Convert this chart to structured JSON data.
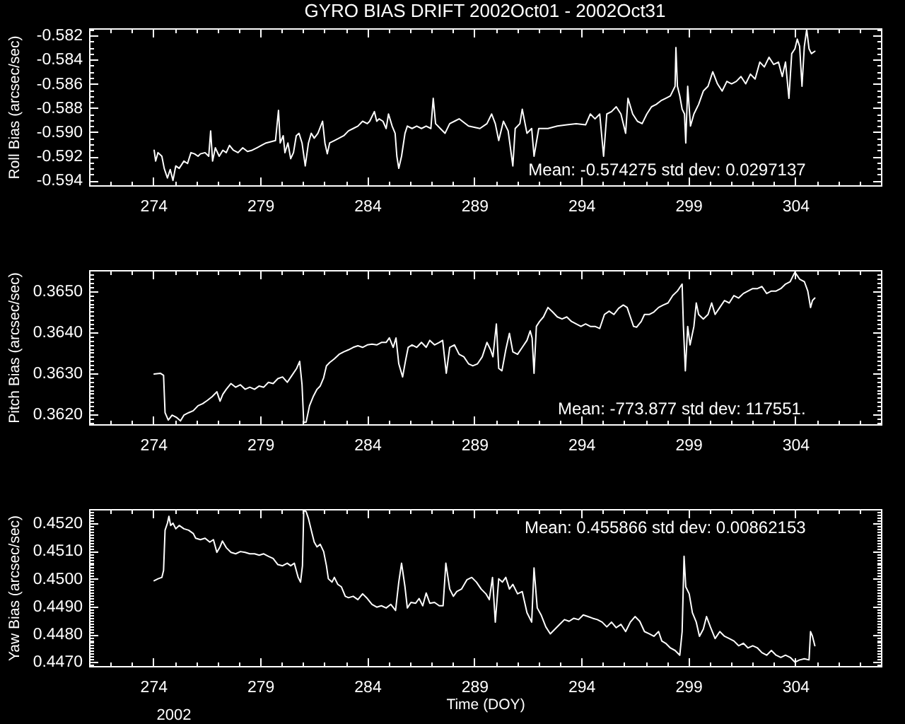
{
  "chart_data": [
    {
      "type": "line",
      "title": "GYRO BIAS DRIFT 2002Oct01 - 2002Oct31",
      "ylabel": "Roll Bias (arcsec/sec)",
      "x": [
        274.04,
        274.11,
        274.22,
        274.4,
        274.51,
        274.66,
        274.79,
        274.92,
        275.05,
        275.21,
        275.43,
        275.6,
        275.76,
        275.93,
        276.09,
        276.2,
        276.42,
        276.59,
        276.68,
        276.77,
        276.9,
        277.08,
        277.25,
        277.41,
        277.56,
        277.74,
        277.96,
        278.18,
        278.4,
        278.62,
        278.84,
        279.05,
        279.27,
        279.49,
        279.71,
        279.85,
        279.93,
        280.07,
        280.15,
        280.29,
        280.42,
        280.55,
        280.68,
        280.81,
        280.95,
        281.1,
        281.25,
        281.38,
        281.52,
        281.69,
        281.91,
        282.02,
        282.13,
        282.24,
        282.46,
        282.68,
        282.9,
        283.12,
        283.34,
        283.56,
        283.78,
        284,
        284.11,
        284.33,
        284.44,
        284.55,
        284.73,
        284.88,
        284.99,
        285.16,
        285.3,
        285.38,
        285.47,
        285.6,
        285.76,
        285.87,
        286.09,
        286.31,
        286.53,
        286.75,
        286.97,
        287.08,
        287.19,
        287.41,
        287.63,
        287.85,
        288.07,
        288.29,
        288.73,
        289.26,
        289.59,
        289.81,
        289.98,
        290.14,
        290.36,
        290.58,
        290.8,
        290.91,
        291.13,
        291.24,
        291.46,
        291.68,
        291.79,
        292.01,
        292.44,
        292.88,
        293.32,
        293.76,
        294.2,
        294.42,
        294.64,
        294.86,
        295.04,
        295.19,
        295.41,
        295.63,
        295.85,
        296.07,
        296.18,
        296.4,
        296.62,
        296.84,
        297.06,
        297.28,
        297.5,
        297.72,
        297.94,
        298.16,
        298.38,
        298.42,
        298.49,
        298.6,
        298.71,
        298.82,
        298.88,
        298.97,
        299.1,
        299.26,
        299.48,
        299.7,
        299.92,
        300.14,
        300.36,
        300.58,
        300.8,
        301.02,
        301.24,
        301.46,
        301.68,
        301.9,
        302.12,
        302.34,
        302.55,
        302.77,
        302.99,
        303.21,
        303.39,
        303.54,
        303.7,
        303.83,
        303.98,
        304.09,
        304.2,
        304.31,
        304.42,
        304.53,
        304.64,
        304.75,
        304.91
      ],
      "series": [
        {
          "color": "#ffffff",
          "values": [
            -0.5915,
            -0.5924,
            -0.5917,
            -0.592,
            -0.593,
            -0.5938,
            -0.5931,
            -0.594,
            -0.5928,
            -0.593,
            -0.5924,
            -0.5926,
            -0.5917,
            -0.5918,
            -0.592,
            -0.5918,
            -0.5917,
            -0.592,
            -0.5899,
            -0.5924,
            -0.5913,
            -0.592,
            -0.5915,
            -0.5917,
            -0.5911,
            -0.5915,
            -0.5917,
            -0.5913,
            -0.5916,
            -0.5915,
            -0.5913,
            -0.5911,
            -0.5909,
            -0.5908,
            -0.5907,
            -0.5882,
            -0.5909,
            -0.5903,
            -0.5917,
            -0.5909,
            -0.5922,
            -0.5917,
            -0.5903,
            -0.5901,
            -0.5909,
            -0.5928,
            -0.5909,
            -0.5901,
            -0.5905,
            -0.5901,
            -0.5891,
            -0.5909,
            -0.5918,
            -0.5909,
            -0.5907,
            -0.5905,
            -0.5903,
            -0.5899,
            -0.5897,
            -0.5895,
            -0.5891,
            -0.5893,
            -0.5891,
            -0.5883,
            -0.5891,
            -0.5889,
            -0.5891,
            -0.5897,
            -0.5885,
            -0.5895,
            -0.5901,
            -0.592,
            -0.593,
            -0.592,
            -0.5901,
            -0.5895,
            -0.5897,
            -0.5895,
            -0.5897,
            -0.5895,
            -0.5897,
            -0.5872,
            -0.5893,
            -0.5897,
            -0.5901,
            -0.5893,
            -0.5891,
            -0.5889,
            -0.5895,
            -0.5897,
            -0.5893,
            -0.5885,
            -0.5893,
            -0.5907,
            -0.5891,
            -0.5899,
            -0.5928,
            -0.5897,
            -0.5893,
            -0.5881,
            -0.5901,
            -0.5897,
            -0.592,
            -0.5897,
            -0.5897,
            -0.5895,
            -0.5894,
            -0.5893,
            -0.5894,
            -0.5885,
            -0.5889,
            -0.5885,
            -0.592,
            -0.5885,
            -0.5883,
            -0.5879,
            -0.5885,
            -0.5901,
            -0.5872,
            -0.5885,
            -0.5891,
            -0.5893,
            -0.5885,
            -0.5879,
            -0.5877,
            -0.5874,
            -0.5872,
            -0.587,
            -0.5862,
            -0.583,
            -0.5862,
            -0.587,
            -0.5881,
            -0.5885,
            -0.5909,
            -0.5862,
            -0.5895,
            -0.5885,
            -0.5877,
            -0.5866,
            -0.5862,
            -0.585,
            -0.586,
            -0.5866,
            -0.5858,
            -0.586,
            -0.5858,
            -0.5854,
            -0.586,
            -0.5852,
            -0.5856,
            -0.5842,
            -0.5846,
            -0.5838,
            -0.5844,
            -0.5842,
            -0.5854,
            -0.5842,
            -0.5872,
            -0.5835,
            -0.5831,
            -0.5823,
            -0.5829,
            -0.5862,
            -0.5829,
            -0.5815,
            -0.5831,
            -0.5835,
            -0.5833
          ]
        }
      ],
      "xlim": [
        271,
        308
      ],
      "ylim": [
        -0.5944,
        -0.5814
      ],
      "xticks": [
        {
          "value": 272,
          "label": null
        },
        {
          "value": 273,
          "label": null
        },
        274,
        {
          "value": 275,
          "label": null
        },
        {
          "value": 276,
          "label": null
        },
        {
          "value": 277,
          "label": null
        },
        {
          "value": 278,
          "label": null
        },
        279,
        {
          "value": 280,
          "label": null
        },
        {
          "value": 281,
          "label": null
        },
        {
          "value": 282,
          "label": null
        },
        {
          "value": 283,
          "label": null
        },
        284,
        {
          "value": 285,
          "label": null
        },
        {
          "value": 286,
          "label": null
        },
        {
          "value": 287,
          "label": null
        },
        {
          "value": 288,
          "label": null
        },
        289,
        {
          "value": 290,
          "label": null
        },
        {
          "value": 291,
          "label": null
        },
        {
          "value": 292,
          "label": null
        },
        {
          "value": 293,
          "label": null
        },
        294,
        {
          "value": 295,
          "label": null
        },
        {
          "value": 296,
          "label": null
        },
        {
          "value": 297,
          "label": null
        },
        {
          "value": 298,
          "label": null
        },
        299,
        {
          "value": 300,
          "label": null
        },
        {
          "value": 301,
          "label": null
        },
        {
          "value": 302,
          "label": null
        },
        {
          "value": 303,
          "label": null
        },
        304,
        {
          "value": 305,
          "label": null
        },
        {
          "value": 306,
          "label": null
        },
        {
          "value": 307,
          "label": null
        }
      ],
      "yticks": [
        -0.594,
        {
          "value": -0.5935,
          "label": null
        },
        {
          "value": -0.593,
          "label": null
        },
        {
          "value": -0.5925,
          "label": null
        },
        -0.592,
        {
          "value": -0.5915,
          "label": null
        },
        {
          "value": -0.591,
          "label": null
        },
        {
          "value": -0.5905,
          "label": null
        },
        {
          "value": -0.59,
          "label": "-0.590"
        },
        {
          "value": -0.5895,
          "label": null
        },
        {
          "value": -0.589,
          "label": null
        },
        {
          "value": -0.5885,
          "label": null
        },
        -0.588,
        {
          "value": -0.5875,
          "label": null
        },
        {
          "value": -0.587,
          "label": null
        },
        {
          "value": -0.5865,
          "label": null
        },
        -0.586,
        {
          "value": -0.5855,
          "label": null
        },
        {
          "value": -0.585,
          "label": null
        },
        {
          "value": -0.5845,
          "label": null
        },
        -0.584,
        {
          "value": -0.5835,
          "label": null
        },
        {
          "value": -0.583,
          "label": null
        },
        {
          "value": -0.5825,
          "label": null
        },
        -0.582,
        {
          "value": -0.5815,
          "label": null
        }
      ],
      "annotations": [
        "Mean: -0.574275 std dev: 0.0297137"
      ]
    },
    {
      "type": "line",
      "ylabel": "Pitch Bias (arcsec/sec)",
      "x": [
        274.04,
        274.33,
        274.48,
        274.55,
        274.7,
        274.88,
        275.1,
        275.27,
        275.43,
        275.65,
        275.87,
        276.09,
        276.31,
        276.53,
        276.75,
        276.97,
        277.12,
        277.25,
        277.41,
        277.63,
        277.85,
        278.07,
        278.29,
        278.51,
        278.73,
        278.95,
        279.16,
        279.38,
        279.6,
        279.82,
        280.04,
        280.26,
        280.48,
        280.7,
        280.84,
        280.95,
        281.03,
        281.14,
        281.3,
        281.47,
        281.65,
        281.8,
        281.96,
        282.09,
        282.24,
        282.46,
        282.68,
        282.9,
        283.12,
        283.34,
        283.56,
        283.78,
        284,
        284.22,
        284.44,
        284.66,
        284.88,
        285.03,
        285.21,
        285.34,
        285.47,
        285.65,
        285.78,
        285.91,
        286.09,
        286.31,
        286.53,
        286.75,
        286.92,
        287.14,
        287.36,
        287.52,
        287.69,
        287.85,
        288.07,
        288.29,
        288.51,
        288.73,
        288.93,
        289.15,
        289.37,
        289.59,
        289.76,
        289.87,
        290.03,
        290.14,
        290.29,
        290.47,
        290.64,
        290.8,
        291.02,
        291.24,
        291.46,
        291.61,
        291.7,
        291.79,
        291.9,
        292.05,
        292.23,
        292.44,
        292.66,
        292.88,
        293.1,
        293.32,
        293.54,
        293.76,
        293.98,
        294.2,
        294.42,
        294.64,
        294.86,
        295.08,
        295.3,
        295.52,
        295.74,
        295.96,
        296.14,
        296.29,
        296.44,
        296.58,
        296.8,
        296.95,
        297.17,
        297.39,
        297.61,
        297.83,
        298.05,
        298.27,
        298.49,
        298.71,
        298.77,
        298.86,
        298.97,
        299.08,
        299.26,
        299.37,
        299.48,
        299.7,
        299.92,
        300.09,
        300.25,
        300.47,
        300.69,
        300.91,
        301.13,
        301.35,
        301.57,
        301.79,
        302.01,
        302.23,
        302.44,
        302.66,
        302.88,
        303.1,
        303.32,
        303.54,
        303.76,
        303.98,
        304.2,
        304.42,
        304.58,
        304.71,
        304.8,
        304.91
      ],
      "series": [
        {
          "color": "#ffffff",
          "values": [
            0.36298,
            0.363,
            0.36295,
            0.36204,
            0.36186,
            0.36198,
            0.36192,
            0.36184,
            0.36198,
            0.36204,
            0.36209,
            0.36221,
            0.36226,
            0.36234,
            0.36243,
            0.36255,
            0.36232,
            0.36249,
            0.36261,
            0.36275,
            0.36266,
            0.36272,
            0.36261,
            0.36266,
            0.36261,
            0.36269,
            0.36266,
            0.36278,
            0.36275,
            0.36287,
            0.36291,
            0.36278,
            0.36295,
            0.36312,
            0.36329,
            0.36272,
            0.3618,
            0.36181,
            0.36221,
            0.36243,
            0.36261,
            0.36269,
            0.36289,
            0.36318,
            0.36326,
            0.36335,
            0.36346,
            0.36352,
            0.36357,
            0.36363,
            0.36367,
            0.36363,
            0.36369,
            0.36371,
            0.36369,
            0.36375,
            0.36375,
            0.36386,
            0.36363,
            0.36386,
            0.36323,
            0.36291,
            0.36329,
            0.36363,
            0.36369,
            0.36363,
            0.36375,
            0.36363,
            0.3638,
            0.36369,
            0.36375,
            0.3638,
            0.363,
            0.36363,
            0.36369,
            0.36346,
            0.3634,
            0.36323,
            0.36318,
            0.36323,
            0.3634,
            0.36375,
            0.36357,
            0.3634,
            0.3642,
            0.36312,
            0.36306,
            0.36357,
            0.36397,
            0.36352,
            0.36346,
            0.36363,
            0.3638,
            0.36403,
            0.36386,
            0.363,
            0.36414,
            0.36426,
            0.36437,
            0.3646,
            0.36449,
            0.36437,
            0.36432,
            0.36437,
            0.36426,
            0.3642,
            0.36414,
            0.3642,
            0.36414,
            0.36414,
            0.36409,
            0.36443,
            0.36451,
            0.36443,
            0.36458,
            0.36466,
            0.3646,
            0.36437,
            0.36414,
            0.36412,
            0.36426,
            0.36443,
            0.36443,
            0.36449,
            0.3646,
            0.36466,
            0.36471,
            0.36489,
            0.365,
            0.36517,
            0.36414,
            0.36306,
            0.36414,
            0.36369,
            0.36414,
            0.36471,
            0.36443,
            0.36432,
            0.36443,
            0.36471,
            0.36443,
            0.3646,
            0.36477,
            0.36471,
            0.36489,
            0.36483,
            0.36494,
            0.365,
            0.36506,
            0.36506,
            0.36511,
            0.36494,
            0.365,
            0.365,
            0.36506,
            0.36517,
            0.36523,
            0.36546,
            0.36529,
            0.36523,
            0.365,
            0.3646,
            0.36477,
            0.36483
          ]
        }
      ],
      "xlim": [
        271,
        308
      ],
      "ylim": [
        0.36176,
        0.36551
      ],
      "xticks": [
        {
          "value": 272,
          "label": null
        },
        {
          "value": 273,
          "label": null
        },
        274,
        {
          "value": 275,
          "label": null
        },
        {
          "value": 276,
          "label": null
        },
        {
          "value": 277,
          "label": null
        },
        {
          "value": 278,
          "label": null
        },
        279,
        {
          "value": 280,
          "label": null
        },
        {
          "value": 281,
          "label": null
        },
        {
          "value": 282,
          "label": null
        },
        {
          "value": 283,
          "label": null
        },
        284,
        {
          "value": 285,
          "label": null
        },
        {
          "value": 286,
          "label": null
        },
        {
          "value": 287,
          "label": null
        },
        {
          "value": 288,
          "label": null
        },
        289,
        {
          "value": 290,
          "label": null
        },
        {
          "value": 291,
          "label": null
        },
        {
          "value": 292,
          "label": null
        },
        {
          "value": 293,
          "label": null
        },
        294,
        {
          "value": 295,
          "label": null
        },
        {
          "value": 296,
          "label": null
        },
        {
          "value": 297,
          "label": null
        },
        {
          "value": 298,
          "label": null
        },
        299,
        {
          "value": 300,
          "label": null
        },
        {
          "value": 301,
          "label": null
        },
        {
          "value": 302,
          "label": null
        },
        {
          "value": 303,
          "label": null
        },
        304,
        {
          "value": 305,
          "label": null
        },
        {
          "value": 306,
          "label": null
        },
        {
          "value": 307,
          "label": null
        }
      ],
      "yticks": [
        {
          "value": 0.3618,
          "label": null
        },
        {
          "value": 0.3619,
          "label": null
        },
        {
          "value": 0.362,
          "label": "0.3620"
        },
        {
          "value": 0.3621,
          "label": null
        },
        {
          "value": 0.3622,
          "label": null
        },
        {
          "value": 0.3623,
          "label": null
        },
        {
          "value": 0.3624,
          "label": null
        },
        {
          "value": 0.3625,
          "label": null
        },
        {
          "value": 0.3626,
          "label": null
        },
        {
          "value": 0.3627,
          "label": null
        },
        {
          "value": 0.3628,
          "label": null
        },
        {
          "value": 0.3629,
          "label": null
        },
        {
          "value": 0.363,
          "label": "0.3630"
        },
        {
          "value": 0.3631,
          "label": null
        },
        {
          "value": 0.3632,
          "label": null
        },
        {
          "value": 0.3633,
          "label": null
        },
        {
          "value": 0.3634,
          "label": null
        },
        {
          "value": 0.3635,
          "label": null
        },
        {
          "value": 0.3636,
          "label": null
        },
        {
          "value": 0.3637,
          "label": null
        },
        {
          "value": 0.3638,
          "label": null
        },
        {
          "value": 0.3639,
          "label": null
        },
        {
          "value": 0.364,
          "label": "0.3640"
        },
        {
          "value": 0.3641,
          "label": null
        },
        {
          "value": 0.3642,
          "label": null
        },
        {
          "value": 0.3643,
          "label": null
        },
        {
          "value": 0.3644,
          "label": null
        },
        {
          "value": 0.3645,
          "label": null
        },
        {
          "value": 0.3646,
          "label": null
        },
        {
          "value": 0.3647,
          "label": null
        },
        {
          "value": 0.3648,
          "label": null
        },
        {
          "value": 0.3649,
          "label": null
        },
        {
          "value": 0.365,
          "label": "0.3650"
        },
        {
          "value": 0.3651,
          "label": null
        },
        {
          "value": 0.3652,
          "label": null
        },
        {
          "value": 0.3653,
          "label": null
        },
        {
          "value": 0.3654,
          "label": null
        },
        {
          "value": 0.3655,
          "label": null
        }
      ],
      "annotations": [
        "Mean: -773.877 std dev: 117551."
      ]
    },
    {
      "type": "line",
      "xlabel": "Time (DOY)",
      "ylabel": "Yaw Bias (arcsec/sec)",
      "x": [
        274.04,
        274.22,
        274.4,
        274.48,
        274.55,
        274.66,
        274.73,
        274.81,
        274.92,
        275.05,
        275.21,
        275.43,
        275.65,
        275.87,
        275.98,
        276.2,
        276.42,
        276.64,
        276.81,
        276.97,
        277.12,
        277.23,
        277.41,
        277.63,
        277.85,
        278.07,
        278.29,
        278.51,
        278.73,
        278.95,
        279.16,
        279.38,
        279.6,
        279.82,
        280.04,
        280.26,
        280.42,
        280.59,
        280.77,
        280.88,
        280.97,
        281.03,
        281.14,
        281.25,
        281.41,
        281.52,
        281.65,
        281.8,
        281.96,
        282.09,
        282.18,
        282.35,
        282.46,
        282.62,
        282.79,
        282.97,
        283.12,
        283.34,
        283.56,
        283.78,
        284,
        284.22,
        284.44,
        284.66,
        284.88,
        285.1,
        285.32,
        285.47,
        285.6,
        285.76,
        285.87,
        286.04,
        286.26,
        286.42,
        286.59,
        286.75,
        286.92,
        287.14,
        287.36,
        287.54,
        287.67,
        287.85,
        288.02,
        288.18,
        288.4,
        288.66,
        288.88,
        289.1,
        289.32,
        289.54,
        289.7,
        289.85,
        289.98,
        290.14,
        290.31,
        290.47,
        290.64,
        290.8,
        291.02,
        291.24,
        291.46,
        291.68,
        291.79,
        291.94,
        292.12,
        292.34,
        292.55,
        292.77,
        292.99,
        293.21,
        293.43,
        293.65,
        293.87,
        294.09,
        294.31,
        294.53,
        294.75,
        294.97,
        295.19,
        295.41,
        295.63,
        295.85,
        296.07,
        296.29,
        296.51,
        296.73,
        296.95,
        297.17,
        297.39,
        297.61,
        297.76,
        297.94,
        298.16,
        298.38,
        298.6,
        298.71,
        298.8,
        298.88,
        299.04,
        299.19,
        299.37,
        299.52,
        299.7,
        299.85,
        300.03,
        300.25,
        300.47,
        300.69,
        300.91,
        301.13,
        301.35,
        301.57,
        301.79,
        302.01,
        302.23,
        302.44,
        302.66,
        302.88,
        303.1,
        303.32,
        303.54,
        303.76,
        303.98,
        304.2,
        304.42,
        304.64,
        304.71,
        304.8,
        304.91
      ],
      "series": [
        {
          "color": "#ffffff",
          "values": [
            0.44993,
            0.45,
            0.45005,
            0.4503,
            0.45175,
            0.452,
            0.45225,
            0.45192,
            0.452,
            0.4518,
            0.45192,
            0.4518,
            0.45175,
            0.45163,
            0.45146,
            0.45141,
            0.45146,
            0.45132,
            0.45141,
            0.45095,
            0.45115,
            0.45136,
            0.45112,
            0.45095,
            0.4509,
            0.45098,
            0.45095,
            0.4509,
            0.4509,
            0.45085,
            0.4509,
            0.45081,
            0.45073,
            0.45051,
            0.45047,
            0.45056,
            0.45047,
            0.45056,
            0.45005,
            0.44988,
            0.45047,
            0.45247,
            0.45242,
            0.45217,
            0.45166,
            0.45132,
            0.45115,
            0.45124,
            0.45098,
            0.45047,
            0.45,
            0.44988,
            0.45005,
            0.4498,
            0.44971,
            0.44937,
            0.44932,
            0.44937,
            0.44925,
            0.44946,
            0.44929,
            0.44908,
            0.44898,
            0.44903,
            0.44895,
            0.44908,
            0.44886,
            0.44988,
            0.45056,
            0.44971,
            0.44895,
            0.44915,
            0.44912,
            0.44929,
            0.44903,
            0.44949,
            0.44912,
            0.44915,
            0.44903,
            0.44903,
            0.45056,
            0.44963,
            0.44937,
            0.44954,
            0.44963,
            0.44997,
            0.45005,
            0.44988,
            0.44963,
            0.44946,
            0.44925,
            0.45005,
            0.44844,
            0.45,
            0.44988,
            0.45005,
            0.44963,
            0.4498,
            0.44946,
            0.44954,
            0.44878,
            0.44844,
            0.45039,
            0.44895,
            0.4487,
            0.44827,
            0.44802,
            0.44819,
            0.44836,
            0.44853,
            0.44847,
            0.44858,
            0.44853,
            0.4487,
            0.44864,
            0.44858,
            0.44853,
            0.44844,
            0.44827,
            0.44844,
            0.44824,
            0.44836,
            0.4481,
            0.44844,
            0.44864,
            0.44847,
            0.4481,
            0.44802,
            0.44793,
            0.4481,
            0.44776,
            0.44768,
            0.44751,
            0.44742,
            0.44725,
            0.4481,
            0.45081,
            0.44971,
            0.44946,
            0.44878,
            0.44844,
            0.44793,
            0.44819,
            0.44864,
            0.44827,
            0.44785,
            0.4481,
            0.44793,
            0.44785,
            0.44776,
            0.44759,
            0.44768,
            0.44751,
            0.44759,
            0.44751,
            0.44734,
            0.44725,
            0.44742,
            0.44725,
            0.44717,
            0.44725,
            0.44717,
            0.447,
            0.44708,
            0.44712,
            0.44708,
            0.4481,
            0.44793,
            0.44759
          ]
        }
      ],
      "xlim": [
        271,
        308
      ],
      "ylim": [
        0.44686,
        0.45251
      ],
      "xticks": [
        {
          "value": 272,
          "label": null
        },
        {
          "value": 273,
          "label": null
        },
        274,
        {
          "value": 275,
          "label": null
        },
        {
          "value": 276,
          "label": null
        },
        {
          "value": 277,
          "label": null
        },
        {
          "value": 278,
          "label": null
        },
        279,
        {
          "value": 280,
          "label": null
        },
        {
          "value": 281,
          "label": null
        },
        {
          "value": 282,
          "label": null
        },
        {
          "value": 283,
          "label": null
        },
        284,
        {
          "value": 285,
          "label": null
        },
        {
          "value": 286,
          "label": null
        },
        {
          "value": 287,
          "label": null
        },
        {
          "value": 288,
          "label": null
        },
        289,
        {
          "value": 290,
          "label": null
        },
        {
          "value": 291,
          "label": null
        },
        {
          "value": 292,
          "label": null
        },
        {
          "value": 293,
          "label": null
        },
        294,
        {
          "value": 295,
          "label": null
        },
        {
          "value": 296,
          "label": null
        },
        {
          "value": 297,
          "label": null
        },
        {
          "value": 298,
          "label": null
        },
        299,
        {
          "value": 300,
          "label": null
        },
        {
          "value": 301,
          "label": null
        },
        {
          "value": 302,
          "label": null
        },
        {
          "value": 303,
          "label": null
        },
        304,
        {
          "value": 305,
          "label": null
        },
        {
          "value": 306,
          "label": null
        },
        {
          "value": 307,
          "label": null
        }
      ],
      "yticks": [
        {
          "value": 0.4469,
          "label": null
        },
        {
          "value": 0.447,
          "label": "0.4470"
        },
        {
          "value": 0.4471,
          "label": null
        },
        {
          "value": 0.4472,
          "label": null
        },
        {
          "value": 0.4473,
          "label": null
        },
        {
          "value": 0.4474,
          "label": null
        },
        {
          "value": 0.4475,
          "label": null
        },
        {
          "value": 0.4476,
          "label": null
        },
        {
          "value": 0.4477,
          "label": null
        },
        {
          "value": 0.4478,
          "label": null
        },
        {
          "value": 0.4479,
          "label": null
        },
        {
          "value": 0.448,
          "label": "0.4480"
        },
        {
          "value": 0.4481,
          "label": null
        },
        {
          "value": 0.4482,
          "label": null
        },
        {
          "value": 0.4483,
          "label": null
        },
        {
          "value": 0.4484,
          "label": null
        },
        {
          "value": 0.4485,
          "label": null
        },
        {
          "value": 0.4486,
          "label": null
        },
        {
          "value": 0.4487,
          "label": null
        },
        {
          "value": 0.4488,
          "label": null
        },
        {
          "value": 0.4489,
          "label": null
        },
        {
          "value": 0.449,
          "label": "0.4490"
        },
        {
          "value": 0.4491,
          "label": null
        },
        {
          "value": 0.4492,
          "label": null
        },
        {
          "value": 0.4493,
          "label": null
        },
        {
          "value": 0.4494,
          "label": null
        },
        {
          "value": 0.4495,
          "label": null
        },
        {
          "value": 0.4496,
          "label": null
        },
        {
          "value": 0.4497,
          "label": null
        },
        {
          "value": 0.4498,
          "label": null
        },
        {
          "value": 0.4499,
          "label": null
        },
        {
          "value": 0.45,
          "label": "0.4500"
        },
        {
          "value": 0.4501,
          "label": null
        },
        {
          "value": 0.4502,
          "label": null
        },
        {
          "value": 0.4503,
          "label": null
        },
        {
          "value": 0.4504,
          "label": null
        },
        {
          "value": 0.4505,
          "label": null
        },
        {
          "value": 0.4506,
          "label": null
        },
        {
          "value": 0.4507,
          "label": null
        },
        {
          "value": 0.4508,
          "label": null
        },
        {
          "value": 0.4509,
          "label": null
        },
        {
          "value": 0.451,
          "label": "0.4510"
        },
        {
          "value": 0.4511,
          "label": null
        },
        {
          "value": 0.4512,
          "label": null
        },
        {
          "value": 0.4513,
          "label": null
        },
        {
          "value": 0.4514,
          "label": null
        },
        {
          "value": 0.4515,
          "label": null
        },
        {
          "value": 0.4516,
          "label": null
        },
        {
          "value": 0.4517,
          "label": null
        },
        {
          "value": 0.4518,
          "label": null
        },
        {
          "value": 0.4519,
          "label": null
        },
        {
          "value": 0.452,
          "label": "0.4520"
        },
        {
          "value": 0.4521,
          "label": null
        },
        {
          "value": 0.4522,
          "label": null
        },
        {
          "value": 0.4523,
          "label": null
        },
        {
          "value": 0.4524,
          "label": null
        },
        {
          "value": 0.4525,
          "label": null
        }
      ],
      "annotations": [
        "Mean: 0.455866 std dev: 0.00862153",
        "2002"
      ]
    }
  ]
}
